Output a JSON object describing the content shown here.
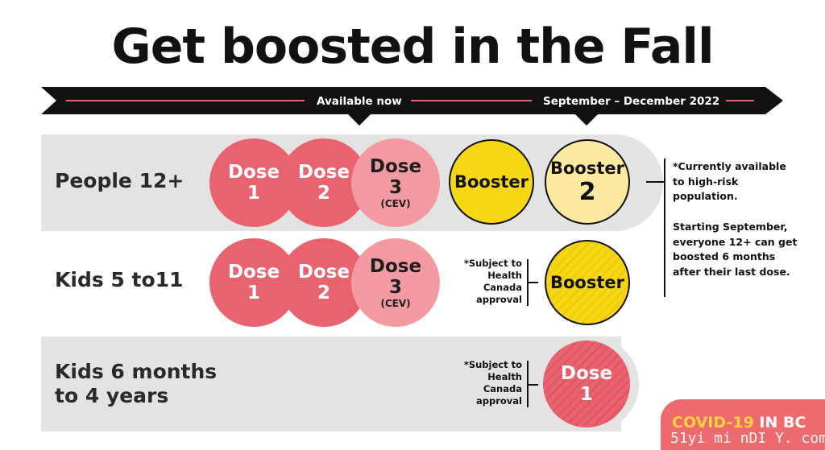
{
  "title": "Get boosted in the Fall",
  "timeline": {
    "label_now": "Available now",
    "label_later": "September – December 2022"
  },
  "rows": {
    "people12": {
      "label": "People 12+",
      "dose1": {
        "word": "Dose",
        "num": "1"
      },
      "dose2": {
        "word": "Dose",
        "num": "2"
      },
      "dose3": {
        "word": "Dose",
        "num": "3",
        "sub": "(CEV)"
      },
      "booster": {
        "word": "Booster"
      },
      "booster2": {
        "word": "Booster",
        "num": "2"
      }
    },
    "kids5to11": {
      "label": "Kids 5 to11",
      "dose1": {
        "word": "Dose",
        "num": "1"
      },
      "dose2": {
        "word": "Dose",
        "num": "2"
      },
      "dose3": {
        "word": "Dose",
        "num": "3",
        "sub": "(CEV)"
      },
      "note": "*Subject to\nHealth\nCanada\napproval",
      "booster": {
        "word": "Booster"
      }
    },
    "kids6mo": {
      "label_line1": "Kids 6 months",
      "label_line2": "to 4 years",
      "note": "*Subject to\nHealth\nCanada\napproval",
      "dose1": {
        "word": "Dose",
        "num": "1"
      }
    }
  },
  "side_note": {
    "line1": "*Currently available\nto high-risk\npopulation.",
    "line2": "Starting September,\neveryone 12+ can get\nboosted 6 months\nafter their last dose."
  },
  "footer": {
    "covid": "COVID-19",
    "region": " IN BC",
    "watermark": "51yi mi nDI Y. com"
  },
  "colors": {
    "dose_red": "#e8636f",
    "dose_pink": "#f49aa2",
    "booster_yellow": "#f6d713",
    "booster_light": "#fbeaa0",
    "band_gray": "#e3e3e3",
    "footer_coral": "#ef6a6f"
  }
}
